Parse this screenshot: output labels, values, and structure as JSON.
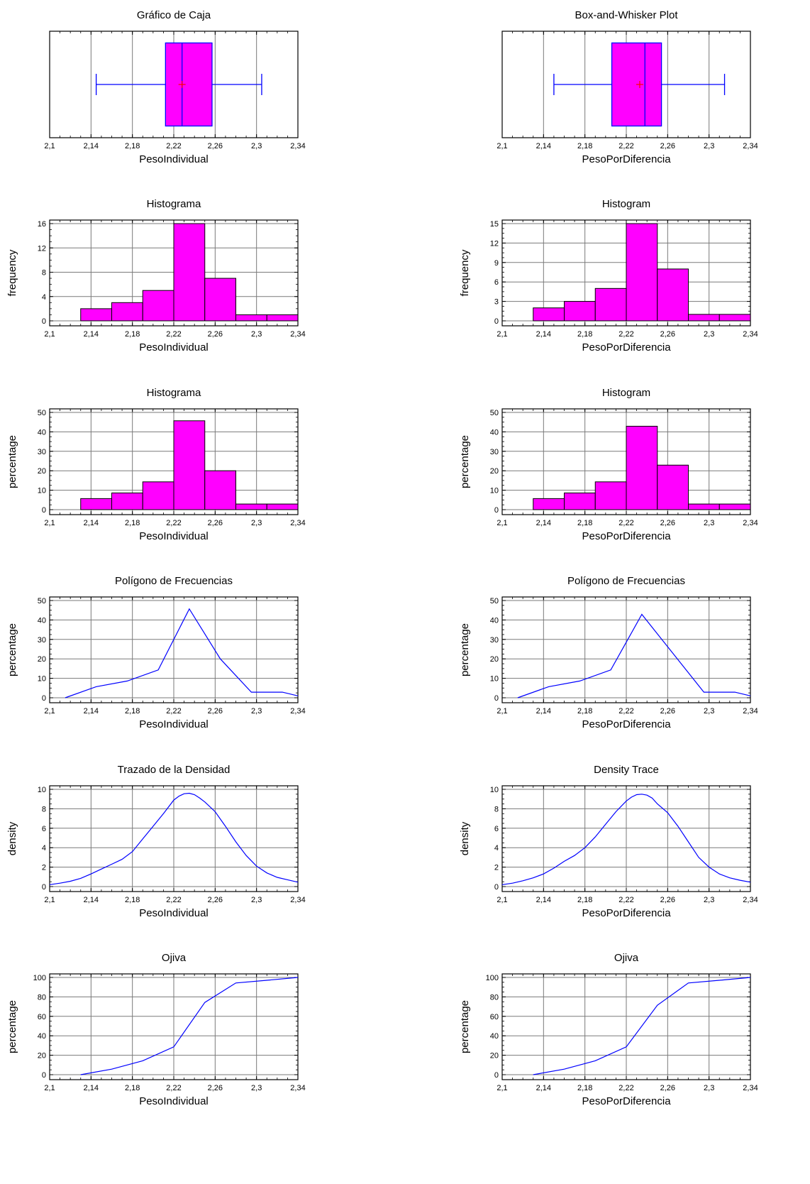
{
  "chart_data": [
    {
      "type": "box",
      "title": "Gráfico de Caja",
      "xlabel": "PesoIndividual",
      "xlim": [
        2.1,
        2.34
      ],
      "xticks": [
        "2,1",
        "2,14",
        "2,18",
        "2,22",
        "2,26",
        "2,3",
        "2,34"
      ],
      "min": 2.145,
      "q1": 2.212,
      "median": 2.228,
      "q3": 2.257,
      "max": 2.305,
      "mean": 2.228,
      "colors": {
        "box": "#ff00ff",
        "line": "#0000ff",
        "mean": "#ff0000"
      }
    },
    {
      "type": "box",
      "title": "Box-and-Whisker Plot",
      "xlabel": "PesoPorDiferencia",
      "xlim": [
        2.1,
        2.34
      ],
      "xticks": [
        "2,1",
        "2,14",
        "2,18",
        "2,22",
        "2,26",
        "2,3",
        "2,34"
      ],
      "min": 2.15,
      "q1": 2.206,
      "median": 2.238,
      "q3": 2.254,
      "max": 2.315,
      "mean": 2.233,
      "colors": {
        "box": "#ff00ff",
        "line": "#0000ff",
        "mean": "#ff0000"
      }
    },
    {
      "type": "bar",
      "title": "Histograma",
      "xlabel": "PesoIndividual",
      "ylabel": "frequency",
      "xlim": [
        2.1,
        2.34
      ],
      "ylim": [
        0,
        16
      ],
      "xticks": [
        "2,1",
        "2,14",
        "2,18",
        "2,22",
        "2,26",
        "2,3",
        "2,34"
      ],
      "yticks": [
        "0",
        "4",
        "8",
        "12",
        "16"
      ],
      "bins": [
        [
          2.13,
          2.16
        ],
        [
          2.16,
          2.19
        ],
        [
          2.19,
          2.22
        ],
        [
          2.22,
          2.25
        ],
        [
          2.25,
          2.28
        ],
        [
          2.28,
          2.31
        ],
        [
          2.31,
          2.34
        ]
      ],
      "values": [
        2,
        3,
        5,
        16,
        7,
        1,
        1
      ],
      "colors": {
        "bar": "#ff00ff"
      }
    },
    {
      "type": "bar",
      "title": "Histogram",
      "xlabel": "PesoPorDiferencia",
      "ylabel": "frequency",
      "xlim": [
        2.1,
        2.34
      ],
      "ylim": [
        0,
        15
      ],
      "xticks": [
        "2,1",
        "2,14",
        "2,18",
        "2,22",
        "2,26",
        "2,3",
        "2,34"
      ],
      "yticks": [
        "0",
        "3",
        "6",
        "9",
        "12",
        "15"
      ],
      "bins": [
        [
          2.13,
          2.16
        ],
        [
          2.16,
          2.19
        ],
        [
          2.19,
          2.22
        ],
        [
          2.22,
          2.25
        ],
        [
          2.25,
          2.28
        ],
        [
          2.28,
          2.31
        ],
        [
          2.31,
          2.34
        ]
      ],
      "values": [
        2,
        3,
        5,
        15,
        8,
        1,
        1
      ],
      "colors": {
        "bar": "#ff00ff"
      }
    },
    {
      "type": "bar",
      "title": "Histograma",
      "xlabel": "PesoIndividual",
      "ylabel": "percentage",
      "xlim": [
        2.1,
        2.34
      ],
      "ylim": [
        0,
        50
      ],
      "xticks": [
        "2,1",
        "2,14",
        "2,18",
        "2,22",
        "2,26",
        "2,3",
        "2,34"
      ],
      "yticks": [
        "0",
        "10",
        "20",
        "30",
        "40",
        "50"
      ],
      "bins": [
        [
          2.13,
          2.16
        ],
        [
          2.16,
          2.19
        ],
        [
          2.19,
          2.22
        ],
        [
          2.22,
          2.25
        ],
        [
          2.25,
          2.28
        ],
        [
          2.28,
          2.31
        ],
        [
          2.31,
          2.34
        ]
      ],
      "values": [
        5.7,
        8.6,
        14.3,
        45.7,
        20.0,
        2.9,
        2.9
      ],
      "colors": {
        "bar": "#ff00ff"
      }
    },
    {
      "type": "bar",
      "title": "Histogram",
      "xlabel": "PesoPorDiferencia",
      "ylabel": "percentage",
      "xlim": [
        2.1,
        2.34
      ],
      "ylim": [
        0,
        50
      ],
      "xticks": [
        "2,1",
        "2,14",
        "2,18",
        "2,22",
        "2,26",
        "2,3",
        "2,34"
      ],
      "yticks": [
        "0",
        "10",
        "20",
        "30",
        "40",
        "50"
      ],
      "bins": [
        [
          2.13,
          2.16
        ],
        [
          2.16,
          2.19
        ],
        [
          2.19,
          2.22
        ],
        [
          2.22,
          2.25
        ],
        [
          2.25,
          2.28
        ],
        [
          2.28,
          2.31
        ],
        [
          2.31,
          2.34
        ]
      ],
      "values": [
        5.7,
        8.6,
        14.3,
        42.9,
        22.9,
        2.9,
        2.9
      ],
      "colors": {
        "bar": "#ff00ff"
      }
    },
    {
      "type": "line",
      "title": "Polígono de Frecuencias",
      "xlabel": "PesoIndividual",
      "ylabel": "percentage",
      "xlim": [
        2.1,
        2.34
      ],
      "ylim": [
        0,
        50
      ],
      "xticks": [
        "2,1",
        "2,14",
        "2,18",
        "2,22",
        "2,26",
        "2,3",
        "2,34"
      ],
      "yticks": [
        "0",
        "10",
        "20",
        "30",
        "40",
        "50"
      ],
      "x": [
        2.115,
        2.145,
        2.175,
        2.205,
        2.235,
        2.265,
        2.295,
        2.325,
        2.34
      ],
      "y": [
        0,
        5.7,
        8.6,
        14.3,
        45.7,
        20.0,
        2.9,
        2.9,
        1.0
      ],
      "colors": {
        "line": "#0000ff"
      }
    },
    {
      "type": "line",
      "title": "Polígono de Frecuencias",
      "xlabel": "PesoPorDiferencia",
      "ylabel": "percentage",
      "xlim": [
        2.1,
        2.34
      ],
      "ylim": [
        0,
        50
      ],
      "xticks": [
        "2,1",
        "2,14",
        "2,18",
        "2,22",
        "2,26",
        "2,3",
        "2,34"
      ],
      "yticks": [
        "0",
        "10",
        "20",
        "30",
        "40",
        "50"
      ],
      "x": [
        2.115,
        2.145,
        2.175,
        2.205,
        2.235,
        2.265,
        2.295,
        2.325,
        2.34
      ],
      "y": [
        0,
        5.7,
        8.6,
        14.3,
        42.9,
        22.9,
        2.9,
        2.9,
        1.0
      ],
      "colors": {
        "line": "#0000ff"
      }
    },
    {
      "type": "line",
      "title": "Trazado de la Densidad",
      "xlabel": "PesoIndividual",
      "ylabel": "density",
      "xlim": [
        2.1,
        2.34
      ],
      "ylim": [
        0,
        10
      ],
      "xticks": [
        "2,1",
        "2,14",
        "2,18",
        "2,22",
        "2,26",
        "2,3",
        "2,34"
      ],
      "yticks": [
        "0",
        "2",
        "4",
        "6",
        "8",
        "10"
      ],
      "x": [
        2.1,
        2.11,
        2.12,
        2.13,
        2.14,
        2.15,
        2.16,
        2.17,
        2.18,
        2.19,
        2.2,
        2.21,
        2.22,
        2.225,
        2.23,
        2.235,
        2.24,
        2.245,
        2.25,
        2.26,
        2.27,
        2.28,
        2.29,
        2.3,
        2.31,
        2.32,
        2.33,
        2.34
      ],
      "y": [
        0.2,
        0.35,
        0.55,
        0.85,
        1.3,
        1.8,
        2.3,
        2.8,
        3.6,
        4.9,
        6.2,
        7.5,
        8.9,
        9.3,
        9.55,
        9.6,
        9.45,
        9.1,
        8.7,
        7.7,
        6.2,
        4.6,
        3.2,
        2.1,
        1.4,
        0.95,
        0.7,
        0.45
      ],
      "colors": {
        "line": "#0000ff"
      }
    },
    {
      "type": "line",
      "title": "Density Trace",
      "xlabel": "PesoPorDiferencia",
      "ylabel": "density",
      "xlim": [
        2.1,
        2.34
      ],
      "ylim": [
        0,
        10
      ],
      "xticks": [
        "2,1",
        "2,14",
        "2,18",
        "2,22",
        "2,26",
        "2,3",
        "2,34"
      ],
      "yticks": [
        "0",
        "2",
        "4",
        "6",
        "8",
        "10"
      ],
      "x": [
        2.1,
        2.11,
        2.12,
        2.13,
        2.14,
        2.15,
        2.16,
        2.17,
        2.18,
        2.19,
        2.2,
        2.21,
        2.22,
        2.225,
        2.23,
        2.235,
        2.24,
        2.245,
        2.25,
        2.26,
        2.27,
        2.28,
        2.29,
        2.3,
        2.31,
        2.32,
        2.33,
        2.34
      ],
      "y": [
        0.2,
        0.35,
        0.6,
        0.9,
        1.3,
        1.9,
        2.6,
        3.2,
        4.0,
        5.1,
        6.4,
        7.7,
        8.8,
        9.2,
        9.45,
        9.5,
        9.4,
        9.1,
        8.5,
        7.6,
        6.2,
        4.6,
        3.0,
        2.0,
        1.3,
        0.9,
        0.65,
        0.45
      ],
      "colors": {
        "line": "#0000ff"
      }
    },
    {
      "type": "line",
      "title": "Ojiva",
      "xlabel": "PesoIndividual",
      "ylabel": "percentage",
      "xlim": [
        2.1,
        2.34
      ],
      "ylim": [
        0,
        100
      ],
      "xticks": [
        "2,1",
        "2,14",
        "2,18",
        "2,22",
        "2,26",
        "2,3",
        "2,34"
      ],
      "yticks": [
        "0",
        "20",
        "40",
        "60",
        "80",
        "100"
      ],
      "x": [
        2.13,
        2.16,
        2.19,
        2.22,
        2.25,
        2.28,
        2.31,
        2.34
      ],
      "y": [
        0,
        5.7,
        14.3,
        28.6,
        74.3,
        94.3,
        97.1,
        100
      ],
      "colors": {
        "line": "#0000ff"
      }
    },
    {
      "type": "line",
      "title": "Ojiva",
      "xlabel": "PesoPorDiferencia",
      "ylabel": "percentage",
      "xlim": [
        2.1,
        2.34
      ],
      "ylim": [
        0,
        100
      ],
      "xticks": [
        "2,1",
        "2,14",
        "2,18",
        "2,22",
        "2,26",
        "2,3",
        "2,34"
      ],
      "yticks": [
        "0",
        "20",
        "40",
        "60",
        "80",
        "100"
      ],
      "x": [
        2.13,
        2.16,
        2.19,
        2.22,
        2.25,
        2.28,
        2.31,
        2.34
      ],
      "y": [
        0,
        5.7,
        14.3,
        28.6,
        71.4,
        94.3,
        97.1,
        100
      ],
      "colors": {
        "line": "#0000ff"
      }
    }
  ]
}
